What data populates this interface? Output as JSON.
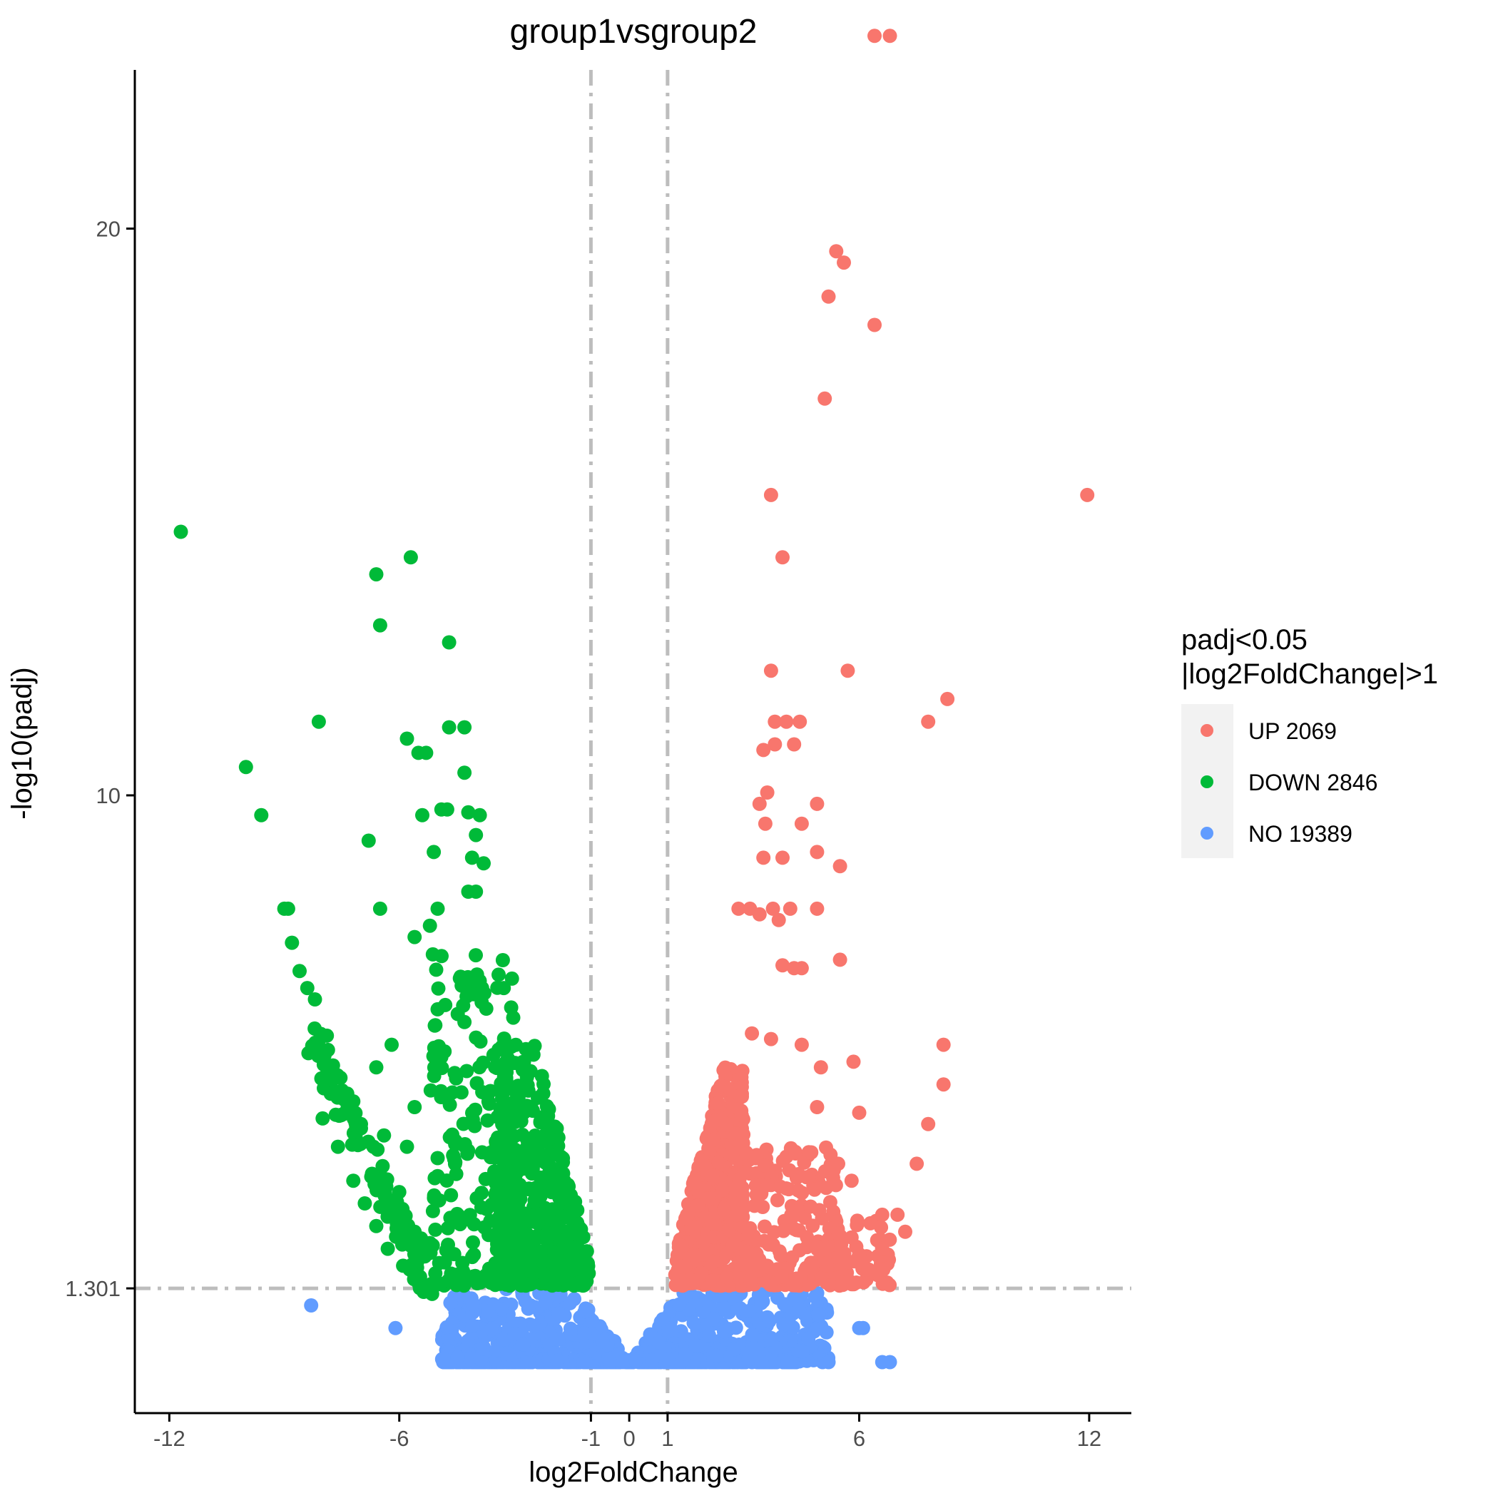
{
  "chart_data": {
    "type": "scatter",
    "title": "group1vsgroup2",
    "xlabel": "log2FoldChange",
    "ylabel": "-log10(padj)",
    "xlim": [
      -12.9,
      13.1
    ],
    "ylim": [
      -0.9,
      22.8
    ],
    "x_ticks": [
      -12,
      -6,
      -1,
      0,
      1,
      6,
      12
    ],
    "x_tick_labels": [
      "-12",
      "-6",
      "-1",
      "0",
      "1",
      "6",
      "12"
    ],
    "y_ticks": [
      1.301,
      10,
      20
    ],
    "y_tick_labels": [
      "1.301",
      "10",
      "20"
    ],
    "thresholds": {
      "vertical": [
        -1,
        1
      ],
      "horizontal": 1.301
    },
    "grid": false,
    "legend": {
      "title_line1": "padj<0.05",
      "title_line2": "|log2FoldChange|>1",
      "position": "right",
      "entries": [
        {
          "key": "UP",
          "label": "UP 2069",
          "color": "#F8766D"
        },
        {
          "key": "DOWN",
          "label": "DOWN 2846",
          "color": "#00BA38"
        },
        {
          "key": "NO",
          "label": "NO 19389",
          "color": "#619CFF"
        }
      ]
    },
    "series": [
      {
        "key": "UP",
        "color": "#F8766D",
        "points": [
          [
            6.4,
            23.4
          ],
          [
            6.8,
            23.4
          ],
          [
            5.4,
            19.6
          ],
          [
            5.6,
            19.4
          ],
          [
            5.2,
            18.8
          ],
          [
            6.4,
            18.3
          ],
          [
            5.1,
            17.0
          ],
          [
            3.7,
            15.3
          ],
          [
            11.95,
            15.3
          ],
          [
            4.0,
            14.2
          ],
          [
            3.7,
            12.2
          ],
          [
            5.7,
            12.2
          ],
          [
            8.3,
            11.7
          ],
          [
            3.8,
            11.3
          ],
          [
            4.1,
            11.3
          ],
          [
            4.45,
            11.3
          ],
          [
            7.8,
            11.3
          ],
          [
            3.5,
            10.8
          ],
          [
            3.8,
            10.9
          ],
          [
            4.3,
            10.9
          ],
          [
            3.6,
            10.05
          ],
          [
            4.9,
            9.85
          ],
          [
            3.4,
            9.85
          ],
          [
            3.55,
            9.5
          ],
          [
            4.5,
            9.5
          ],
          [
            4.9,
            9.0
          ],
          [
            3.5,
            8.9
          ],
          [
            4.0,
            8.9
          ],
          [
            5.5,
            8.75
          ],
          [
            2.85,
            8.0
          ],
          [
            3.15,
            8.0
          ],
          [
            3.75,
            8.0
          ],
          [
            4.2,
            8.0
          ],
          [
            4.9,
            8.0
          ],
          [
            3.4,
            7.9
          ],
          [
            3.9,
            7.8
          ],
          [
            4.0,
            7.0
          ],
          [
            5.5,
            7.1
          ],
          [
            4.3,
            6.95
          ],
          [
            4.5,
            6.95
          ],
          [
            8.2,
            5.6
          ],
          [
            8.2,
            4.9
          ],
          [
            7.8,
            4.2
          ],
          [
            3.2,
            5.8
          ],
          [
            3.7,
            5.7
          ],
          [
            4.5,
            5.6
          ],
          [
            5.0,
            5.2
          ],
          [
            5.85,
            5.3
          ],
          [
            6.0,
            4.4
          ],
          [
            4.9,
            4.5
          ],
          [
            7.5,
            3.5
          ],
          [
            5.8,
            3.2
          ],
          [
            5.45,
            3.5
          ],
          [
            4.75,
            3.7
          ],
          [
            6.6,
            2.6
          ],
          [
            7.0,
            2.6
          ],
          [
            7.2,
            2.3
          ],
          [
            5.8,
            2.2
          ],
          [
            6.6,
            2.0
          ],
          [
            6.0,
            1.9
          ]
        ],
        "clusters": [
          {
            "x": [
              1.2,
              3.0
            ],
            "y": [
              1.35,
              5.2
            ],
            "n": 520,
            "shape": "v-edge"
          },
          {
            "x": [
              2.8,
              5.5
            ],
            "y": [
              1.35,
              3.8
            ],
            "n": 190,
            "shape": "box"
          },
          {
            "x": [
              5.0,
              6.8
            ],
            "y": [
              1.35,
              2.5
            ],
            "n": 60,
            "shape": "box"
          }
        ]
      },
      {
        "key": "DOWN",
        "color": "#00BA38",
        "points": [
          [
            -11.7,
            14.65
          ],
          [
            -6.6,
            13.9
          ],
          [
            -5.7,
            14.2
          ],
          [
            -6.5,
            13.0
          ],
          [
            -4.7,
            12.7
          ],
          [
            -8.1,
            11.3
          ],
          [
            -10.0,
            10.5
          ],
          [
            -5.8,
            11.0
          ],
          [
            -5.5,
            10.75
          ],
          [
            -5.3,
            10.75
          ],
          [
            -4.7,
            11.2
          ],
          [
            -4.3,
            11.2
          ],
          [
            -4.3,
            10.4
          ],
          [
            -9.6,
            9.65
          ],
          [
            -5.4,
            9.65
          ],
          [
            -4.9,
            9.75
          ],
          [
            -4.75,
            9.75
          ],
          [
            -4.2,
            9.7
          ],
          [
            -3.9,
            9.65
          ],
          [
            -6.8,
            9.2
          ],
          [
            -5.1,
            9.0
          ],
          [
            -4.0,
            9.3
          ],
          [
            -4.1,
            8.9
          ],
          [
            -3.8,
            8.8
          ],
          [
            -9.0,
            8.0
          ],
          [
            -8.9,
            8.0
          ],
          [
            -6.5,
            8.0
          ],
          [
            -4.2,
            8.3
          ],
          [
            -4.0,
            8.3
          ],
          [
            -5.6,
            7.5
          ],
          [
            -5.2,
            7.7
          ],
          [
            -5.0,
            8.0
          ],
          [
            -8.8,
            7.4
          ],
          [
            -8.6,
            6.9
          ],
          [
            -8.4,
            6.6
          ],
          [
            -8.2,
            6.4
          ],
          [
            -6.2,
            5.6
          ],
          [
            -6.6,
            5.2
          ],
          [
            -7.2,
            4.6
          ],
          [
            -7.0,
            4.2
          ],
          [
            -6.4,
            4.0
          ],
          [
            -5.6,
            4.5
          ],
          [
            -5.8,
            3.8
          ],
          [
            -5.0,
            3.6
          ],
          [
            -6.0,
            3.0
          ],
          [
            -6.2,
            2.6
          ],
          [
            -5.6,
            2.3
          ],
          [
            -5.2,
            2.1
          ],
          [
            -8.0,
            4.3
          ],
          [
            -7.6,
            3.8
          ],
          [
            -7.2,
            3.2
          ],
          [
            -6.9,
            2.8
          ],
          [
            -6.6,
            2.4
          ],
          [
            -6.3,
            2.0
          ],
          [
            -5.9,
            1.7
          ],
          [
            -5.6,
            1.5
          ],
          [
            -4.4,
            6.8
          ],
          [
            -4.8,
            6.3
          ],
          [
            -4.3,
            6.0
          ],
          [
            -3.9,
            6.5
          ]
        ],
        "clusters": [
          {
            "x": [
              -3.5,
              -1.05
            ],
            "y": [
              1.35,
              5.6
            ],
            "n": 500,
            "shape": "v-edge"
          },
          {
            "x": [
              -5.2,
              -3.0
            ],
            "y": [
              1.35,
              7.2
            ],
            "n": 200,
            "shape": "box"
          },
          {
            "x": [
              -8.3,
              -5.2
            ],
            "y": [
              1.35,
              5.8
            ],
            "n": 110,
            "shape": "diagonal"
          }
        ]
      },
      {
        "key": "NO",
        "color": "#619CFF",
        "points": [
          [
            -8.3,
            1.0
          ],
          [
            -6.1,
            0.6
          ],
          [
            6.0,
            0.6
          ],
          [
            6.1,
            0.6
          ],
          [
            5.2,
            0.0
          ],
          [
            6.6,
            0.0
          ],
          [
            6.8,
            0.0
          ],
          [
            3.7,
            0.4
          ]
        ],
        "clusters": [
          {
            "x": [
              -4.9,
              4.4
            ],
            "y": [
              0.0,
              0.0
            ],
            "n": 300,
            "shape": "baseline"
          },
          {
            "x": [
              -4.9,
              5.2
            ],
            "y": [
              0.0,
              1.3
            ],
            "n": 700,
            "shape": "funnel"
          }
        ]
      }
    ]
  }
}
